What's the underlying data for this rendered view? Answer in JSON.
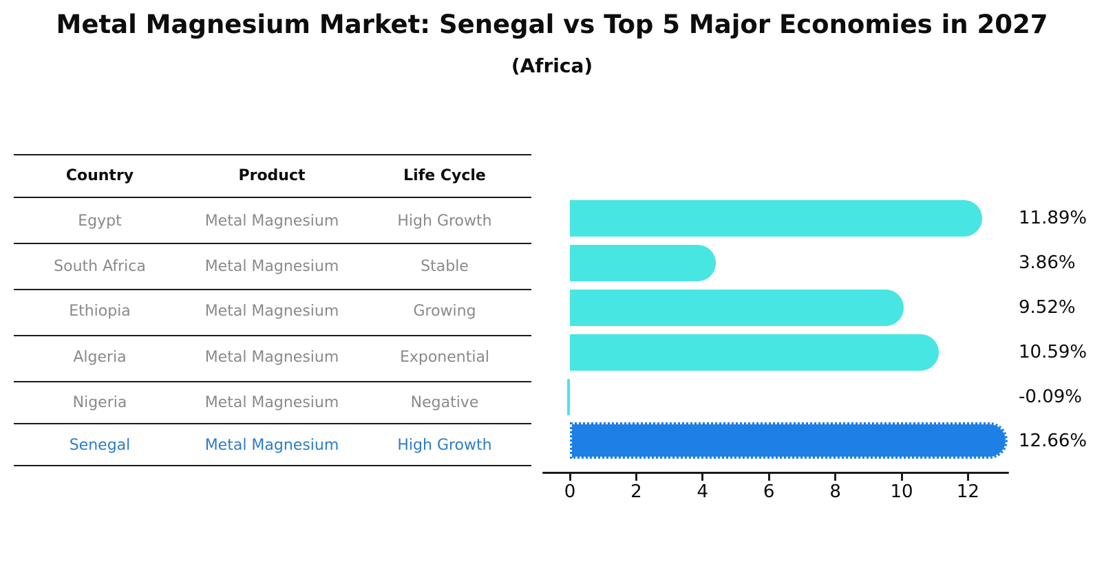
{
  "title": "Metal Magnesium Market: Senegal vs Top 5 Major Economies in 2027",
  "subtitle": "(Africa)",
  "table": {
    "headers": [
      "Country",
      "Product",
      "Life Cycle"
    ],
    "rows": [
      {
        "country": "Egypt",
        "product": "Metal Magnesium",
        "life_cycle": "High Growth",
        "highlight": false
      },
      {
        "country": "South Africa",
        "product": "Metal Magnesium",
        "life_cycle": "Stable",
        "highlight": false
      },
      {
        "country": "Ethiopia",
        "product": "Metal Magnesium",
        "life_cycle": "Growing",
        "highlight": false
      },
      {
        "country": "Algeria",
        "product": "Metal Magnesium",
        "life_cycle": "Exponential",
        "highlight": false
      },
      {
        "country": "Nigeria",
        "product": "Metal Magnesium",
        "life_cycle": "Negative",
        "highlight": false
      },
      {
        "country": "Senegal",
        "product": "Metal Magnesium",
        "life_cycle": "High Growth",
        "highlight": true
      }
    ]
  },
  "chart_data": {
    "type": "bar",
    "orientation": "horizontal",
    "categories": [
      "Egypt",
      "South Africa",
      "Ethiopia",
      "Algeria",
      "Nigeria",
      "Senegal"
    ],
    "values": [
      11.89,
      3.86,
      9.52,
      10.59,
      -0.09,
      12.66
    ],
    "value_labels": [
      "11.89%",
      "3.86%",
      "9.52%",
      "10.59%",
      "-0.09%",
      "12.66%"
    ],
    "x_ticks": [
      0,
      2,
      4,
      6,
      8,
      10,
      12
    ],
    "xlim": [
      -1.2,
      13.2
    ],
    "grid": false,
    "legend": false,
    "bar_color": "#48e6e2",
    "highlight_color": "#1e7fe5",
    "highlight_index": 5,
    "highlight_text_color": "#2e7cc9"
  }
}
